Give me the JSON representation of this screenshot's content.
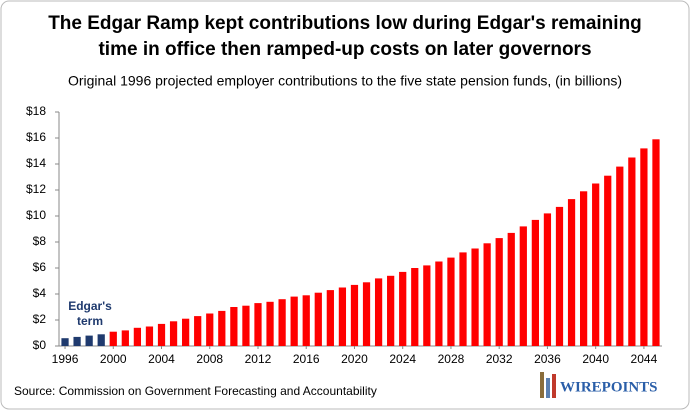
{
  "chart_data": {
    "type": "bar",
    "title": [
      "The Edgar Ramp kept contributions low during Edgar's remaining",
      "time in office then ramped-up costs on later governors"
    ],
    "subtitle": "Original 1996 projected employer contributions to the five state pension funds, (in billions)",
    "annotation": [
      "Edgar's",
      "term"
    ],
    "source": "Source: Commission on Government Forecasting and Accountability",
    "logo": "WIREPOINTS",
    "x": [
      1996,
      1997,
      1998,
      1999,
      2000,
      2001,
      2002,
      2003,
      2004,
      2005,
      2006,
      2007,
      2008,
      2009,
      2010,
      2011,
      2012,
      2013,
      2014,
      2015,
      2016,
      2017,
      2018,
      2019,
      2020,
      2021,
      2022,
      2023,
      2024,
      2025,
      2026,
      2027,
      2028,
      2029,
      2030,
      2031,
      2032,
      2033,
      2034,
      2035,
      2036,
      2037,
      2038,
      2039,
      2040,
      2041,
      2042,
      2043,
      2044,
      2045
    ],
    "series": [
      {
        "color": "#1f3a6e",
        "values": [
          0.6,
          0.7,
          0.8,
          0.9,
          null,
          null,
          null,
          null,
          null,
          null,
          null,
          null,
          null,
          null,
          null,
          null,
          null,
          null,
          null,
          null,
          null,
          null,
          null,
          null,
          null,
          null,
          null,
          null,
          null,
          null,
          null,
          null,
          null,
          null,
          null,
          null,
          null,
          null,
          null,
          null,
          null,
          null,
          null,
          null,
          null,
          null,
          null,
          null,
          null,
          null
        ]
      },
      {
        "color": "#ff0000",
        "values": [
          null,
          null,
          null,
          null,
          1.1,
          1.2,
          1.4,
          1.5,
          1.7,
          1.9,
          2.1,
          2.3,
          2.5,
          2.7,
          3.0,
          3.1,
          3.3,
          3.4,
          3.6,
          3.8,
          3.9,
          4.1,
          4.3,
          4.5,
          4.7,
          4.9,
          5.2,
          5.4,
          5.7,
          6.0,
          6.2,
          6.5,
          6.8,
          7.2,
          7.5,
          7.9,
          8.3,
          8.7,
          9.2,
          9.7,
          10.2,
          10.7,
          11.3,
          11.9,
          12.5,
          13.1,
          13.8,
          14.5,
          15.2,
          15.9
        ]
      }
    ],
    "xlim": [
      1995.5,
      2045.5
    ],
    "xticks": [
      1996,
      2000,
      2004,
      2008,
      2012,
      2016,
      2020,
      2024,
      2028,
      2032,
      2036,
      2040,
      2044
    ],
    "ylim": [
      0,
      18
    ],
    "yticks": [
      {
        "value": 0,
        "label": "$0"
      },
      {
        "value": 2,
        "label": "$2"
      },
      {
        "value": 4,
        "label": "$4"
      },
      {
        "value": 6,
        "label": "$6"
      },
      {
        "value": 8,
        "label": "$8"
      },
      {
        "value": 10,
        "label": "$10"
      },
      {
        "value": 12,
        "label": "$12"
      },
      {
        "value": 14,
        "label": "$14"
      },
      {
        "value": 16,
        "label": "$16"
      },
      {
        "value": 18,
        "label": "$18"
      }
    ],
    "grid": false
  }
}
